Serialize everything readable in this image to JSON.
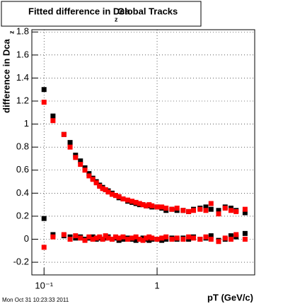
{
  "chart_data": {
    "type": "scatter",
    "title": "Fitted difference in Dca",
    "title_subscript": "z",
    "subtitle": "Global Tracks",
    "y_label": "difference in Dca",
    "y_label_subscript": "z",
    "x_label": "pT (GeV/c)",
    "footer": "Mon Oct 31 10:23:33 2011",
    "log_x": true,
    "grid": true,
    "xlim": [
      0.078,
      7.3
    ],
    "ylim": [
      -0.31,
      1.82
    ],
    "xticks": [
      {
        "value": 0.1,
        "label": "10⁻¹"
      },
      1
    ],
    "yticks": [
      -0.2,
      0,
      0.2,
      0.4,
      0.6,
      0.8,
      1,
      1.2,
      1.4,
      1.6,
      1.8
    ],
    "x": [
      0.1,
      0.12,
      0.15,
      0.17,
      0.19,
      0.21,
      0.23,
      0.25,
      0.27,
      0.29,
      0.31,
      0.33,
      0.35,
      0.37,
      0.4,
      0.43,
      0.46,
      0.5,
      0.55,
      0.6,
      0.65,
      0.7,
      0.75,
      0.8,
      0.85,
      0.9,
      1.0,
      1.1,
      1.2,
      1.35,
      1.5,
      1.7,
      1.9,
      2.1,
      2.4,
      2.7,
      3.0,
      3.5,
      4.0,
      4.5,
      5.0,
      6.0
    ],
    "series": [
      {
        "color": "#000000",
        "values": [
          1.3,
          1.07,
          0.91,
          0.84,
          0.73,
          0.68,
          0.62,
          0.57,
          0.53,
          0.5,
          0.47,
          0.45,
          0.43,
          0.42,
          0.4,
          0.38,
          0.36,
          0.35,
          0.33,
          0.32,
          0.31,
          0.3,
          0.3,
          0.29,
          0.29,
          0.28,
          0.28,
          0.27,
          0.25,
          0.26,
          0.25,
          0.25,
          0.24,
          0.26,
          0.27,
          0.28,
          0.26,
          0.25,
          0.28,
          0.27,
          0.25,
          0.23
        ]
      },
      {
        "color": "#ff0000",
        "values": [
          1.19,
          1.03,
          0.91,
          0.8,
          0.71,
          0.65,
          0.6,
          0.55,
          0.52,
          0.49,
          0.46,
          0.44,
          0.43,
          0.41,
          0.39,
          0.38,
          0.37,
          0.35,
          0.34,
          0.33,
          0.32,
          0.31,
          0.3,
          0.29,
          0.3,
          0.29,
          0.28,
          0.28,
          0.27,
          0.26,
          0.27,
          0.25,
          0.24,
          0.25,
          0.26,
          0.25,
          0.31,
          0.22,
          0.27,
          0.25,
          0.24,
          0.26
        ]
      },
      {
        "color": "#000000",
        "values": [
          0.18,
          0.04,
          0.03,
          0.02,
          0.01,
          0.02,
          0.0,
          0.01,
          0.02,
          0.0,
          0.01,
          0.0,
          0.01,
          0.02,
          0.0,
          0.01,
          -0.01,
          0.0,
          0.01,
          0.0,
          -0.01,
          0.0,
          0.01,
          0.0,
          -0.01,
          0.0,
          0.0,
          -0.01,
          0.0,
          0.01,
          0.0,
          0.01,
          0.0,
          0.02,
          0.0,
          0.01,
          0.03,
          -0.01,
          0.0,
          0.03,
          0.02,
          0.05
        ]
      },
      {
        "color": "#ff0000",
        "values": [
          -0.07,
          0.02,
          0.04,
          0.0,
          0.03,
          0.01,
          -0.01,
          0.02,
          0.0,
          0.01,
          0.02,
          0.0,
          0.03,
          0.01,
          0.0,
          0.02,
          0.01,
          0.02,
          0.0,
          0.01,
          0.02,
          0.0,
          -0.01,
          0.01,
          0.02,
          0.01,
          0.0,
          0.01,
          0.02,
          0.0,
          0.01,
          0.0,
          0.02,
          0.01,
          0.0,
          0.02,
          0.0,
          -0.02,
          0.01,
          0.0,
          0.04,
          0.0
        ]
      }
    ]
  }
}
